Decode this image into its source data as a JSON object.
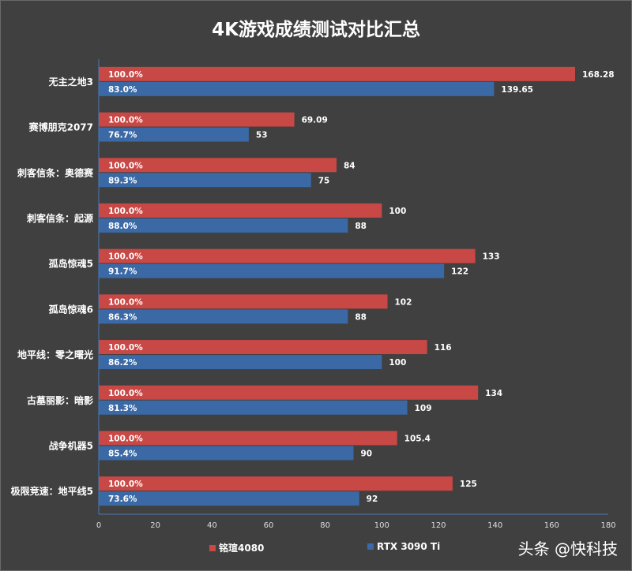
{
  "chart_data": {
    "type": "bar",
    "orientation": "horizontal",
    "title": "4K游戏成绩测试对比汇总",
    "categories": [
      "无主之地3",
      "赛博朋克2077",
      "刺客信条：奥德赛",
      "刺客信条：起源",
      "孤岛惊魂5",
      "孤岛惊魂6",
      "地平线：零之曙光",
      "古墓丽影：暗影",
      "战争机器5",
      "极限竞速：地平线5"
    ],
    "series": [
      {
        "name": "铭瑄4080",
        "color": "#C84845",
        "values": [
          168.28,
          69.09,
          84,
          100,
          133,
          102,
          116,
          134,
          105.4,
          125
        ],
        "percent_labels": [
          "100.0%",
          "100.0%",
          "100.0%",
          "100.0%",
          "100.0%",
          "100.0%",
          "100.0%",
          "100.0%",
          "100.0%",
          "100.0%"
        ]
      },
      {
        "name": "RTX 3090 Ti",
        "color": "#3A69A6",
        "values": [
          139.65,
          53,
          75,
          88,
          122,
          88,
          100,
          109,
          90,
          92
        ],
        "percent_labels": [
          "83.0%",
          "76.7%",
          "89.3%",
          "88.0%",
          "91.7%",
          "86.3%",
          "86.2%",
          "81.3%",
          "85.4%",
          "73.6%"
        ]
      }
    ],
    "xlim": [
      0,
      180
    ],
    "xticks": [
      "0",
      "20",
      "40",
      "60",
      "80",
      "100",
      "120",
      "140",
      "160",
      "180"
    ],
    "legend_position": "bottom",
    "grid": false
  },
  "watermark": "头条 @快科技"
}
